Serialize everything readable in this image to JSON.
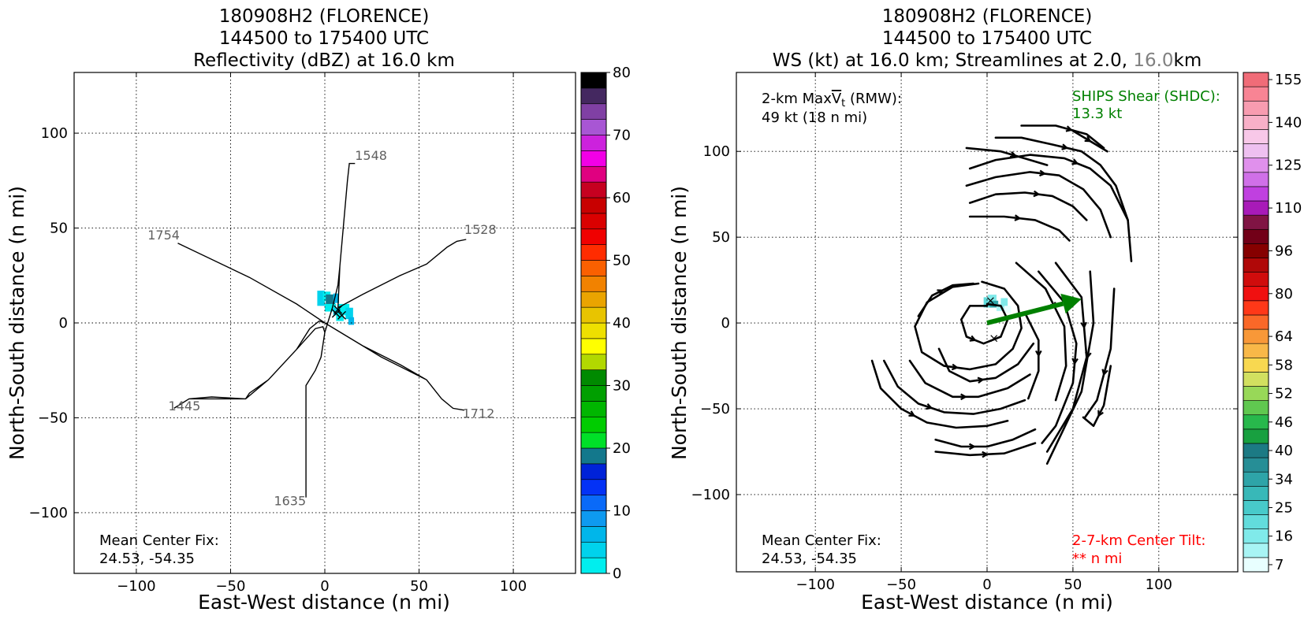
{
  "chart_data": [
    {
      "type": "heatmap",
      "title": [
        "180908H2 (FLORENCE)",
        "144500 to 175400 UTC",
        "Reflectivity (dBZ) at 16.0 km"
      ],
      "xlabel": "East-West distance (n mi)",
      "ylabel": "North-South distance (n mi)",
      "xlim": [
        -133,
        133
      ],
      "ylim": [
        -132,
        132
      ],
      "xticks": [
        -100,
        -50,
        0,
        50,
        100
      ],
      "yticks": [
        -100,
        -50,
        0,
        50,
        100
      ],
      "xtick_labels": [
        "−100",
        "−50",
        "0",
        "50",
        "100"
      ],
      "ytick_labels": [
        "−100",
        "−50",
        "0",
        "50",
        "100"
      ],
      "grid": true,
      "colorbar": {
        "min": 0,
        "max": 80,
        "step": 4,
        "ticks": [
          0,
          10,
          20,
          30,
          40,
          50,
          60,
          70,
          80
        ],
        "tick_labels": [
          "0",
          "10",
          "20",
          "30",
          "40",
          "50",
          "60",
          "70",
          "80"
        ],
        "colors": [
          "#00eeee",
          "#00d2ec",
          "#00b6ea",
          "#0e9af0",
          "#0a6af8",
          "#0432f6",
          "#0022d8",
          "#13788c",
          "#00e028",
          "#00cc00",
          "#00b600",
          "#009f00",
          "#008a00",
          "#b2d800",
          "#ffff00",
          "#eee000",
          "#e8c400",
          "#eaa400",
          "#f18200",
          "#fa6000",
          "#ff2c00",
          "#f00000",
          "#da0000",
          "#c80000",
          "#c60020",
          "#e00080",
          "#f200e6",
          "#cc22dd",
          "#a856d4",
          "#8040a4",
          "#442860",
          "#000000"
        ]
      },
      "reflectivity_cells": [
        {
          "x": -2,
          "y": 13,
          "w": 4,
          "h": 8,
          "color": "#00d2ec"
        },
        {
          "x": 1,
          "y": 14,
          "w": 4,
          "h": 5,
          "color": "#00eeee"
        },
        {
          "x": 3,
          "y": 12,
          "w": 5,
          "h": 6,
          "color": "#13788c"
        },
        {
          "x": 6,
          "y": 13,
          "w": 3,
          "h": 5,
          "color": "#00b6ea"
        },
        {
          "x": 3,
          "y": 8,
          "w": 6,
          "h": 4,
          "color": "#00eeee"
        },
        {
          "x": 7,
          "y": 6,
          "w": 5,
          "h": 4,
          "color": "#00d2ec"
        },
        {
          "x": 10,
          "y": 7,
          "w": 6,
          "h": 6,
          "color": "#00eeee"
        },
        {
          "x": 13,
          "y": 5,
          "w": 4,
          "h": 6,
          "color": "#00d2ec"
        },
        {
          "x": 14,
          "y": 1,
          "w": 3,
          "h": 4,
          "color": "#00b6ea"
        },
        {
          "x": 8,
          "y": 3,
          "w": 4,
          "h": 4,
          "color": "#00eeee"
        }
      ],
      "flight_track": [
        [
          -78,
          42
        ],
        [
          -40,
          24
        ],
        [
          -15,
          10
        ],
        [
          0,
          0
        ],
        [
          20,
          -12
        ],
        [
          40,
          -22
        ],
        [
          54,
          -30
        ],
        [
          62,
          -40
        ],
        [
          68,
          -45
        ],
        [
          74,
          -46
        ],
        [
          74,
          -46
        ],
        [
          68,
          -45
        ],
        [
          62,
          -40
        ],
        [
          54,
          -30
        ],
        [
          30,
          -18
        ],
        [
          0,
          0
        ],
        [
          -3,
          1
        ],
        [
          -8,
          -3
        ],
        [
          -15,
          -14
        ],
        [
          -30,
          -30
        ],
        [
          -40,
          -37
        ],
        [
          -42,
          -40
        ],
        [
          -60,
          -39
        ],
        [
          -72,
          -40
        ],
        [
          -80,
          -45
        ],
        [
          -80,
          -45
        ],
        [
          -72,
          -40
        ],
        [
          -42,
          -40
        ],
        [
          -30,
          -30
        ],
        [
          -15,
          -14
        ],
        [
          -5,
          -3
        ],
        [
          -1,
          -2
        ],
        [
          0,
          -5
        ],
        [
          -2,
          -18
        ],
        [
          -5,
          -25
        ],
        [
          -10,
          -33
        ],
        [
          -10,
          -92
        ],
        [
          -10,
          -92
        ],
        [
          -10,
          -33
        ],
        [
          -5,
          -25
        ],
        [
          -2,
          -18
        ],
        [
          0,
          -5
        ],
        [
          4,
          8
        ],
        [
          7,
          20
        ],
        [
          8,
          30
        ],
        [
          12,
          75
        ],
        [
          13,
          84
        ],
        [
          16,
          84
        ],
        [
          16,
          84
        ],
        [
          13,
          84
        ],
        [
          12,
          75
        ],
        [
          8,
          30
        ],
        [
          7,
          8
        ],
        [
          20,
          15
        ],
        [
          40,
          25
        ],
        [
          54,
          31
        ],
        [
          65,
          40
        ],
        [
          70,
          43
        ],
        [
          75,
          44
        ]
      ],
      "track_labels": [
        {
          "text": "1548",
          "x": 16,
          "y": 86
        },
        {
          "text": "1528",
          "x": 74,
          "y": 47
        },
        {
          "text": "1754",
          "x": -94,
          "y": 44
        },
        {
          "text": "1445",
          "x": -83,
          "y": -46
        },
        {
          "text": "1712",
          "x": 73,
          "y": -50
        },
        {
          "text": "1635",
          "x": -27,
          "y": -96
        }
      ],
      "center_marks": [
        [
          7,
          7
        ],
        [
          9,
          4
        ],
        [
          6,
          5
        ]
      ],
      "annotation": [
        "Mean Center Fix:",
        "24.53, -54.35"
      ]
    },
    {
      "type": "heatmap",
      "title": [
        "180908H2 (FLORENCE)",
        "144500 to 175400 UTC"
      ],
      "title_line3": {
        "prefix": "WS (kt) at 16.0 km; Streamlines at 2.0, ",
        "highlight": "16.0",
        "suffix": "km",
        "highlight_color": "#808080"
      },
      "xlabel": "East-West distance (n mi)",
      "ylabel": "North-South distance (n mi)",
      "xlim": [
        -146,
        146
      ],
      "ylim": [
        -145,
        146
      ],
      "xticks": [
        -100,
        -50,
        0,
        50,
        100
      ],
      "yticks": [
        -100,
        -50,
        0,
        50,
        100
      ],
      "xtick_labels": [
        "−100",
        "−50",
        "0",
        "50",
        "100"
      ],
      "ytick_labels": [
        "−100",
        "−50",
        "0",
        "50",
        "100"
      ],
      "grid": true,
      "colorbar": {
        "levels": 35,
        "ticks": [
          7,
          16,
          25,
          34,
          40,
          46,
          52,
          58,
          64,
          80,
          96,
          110,
          125,
          140,
          155
        ],
        "tick_level_index": [
          0,
          2,
          4,
          6,
          8,
          10,
          12,
          14,
          16,
          19,
          22,
          25,
          28,
          31,
          34
        ],
        "colors": [
          "#e8ffff",
          "#a8f4f4",
          "#80eaea",
          "#62dcdc",
          "#48caca",
          "#38b8b8",
          "#2ea4a8",
          "#268e96",
          "#1c7a84",
          "#18a040",
          "#28b84c",
          "#60c850",
          "#98d858",
          "#d2e060",
          "#f8d850",
          "#f8b848",
          "#f89838",
          "#fa6828",
          "#ff3818",
          "#f01010",
          "#d00c0c",
          "#b00808",
          "#860000",
          "#720018",
          "#801444",
          "#a81ab8",
          "#c040e0",
          "#d070e8",
          "#e090ec",
          "#eec0f0",
          "#f8c8e8",
          "#f8b0c8",
          "#f89cb0",
          "#f88494",
          "#f06c78",
          "#e05660",
          "#cc3850",
          "#b82840",
          "#a01c38"
        ]
      },
      "windspeed_cells": [
        {
          "x": 0,
          "y": 12,
          "w": 4,
          "h": 6,
          "color": "#62dcdc"
        },
        {
          "x": 3,
          "y": 14,
          "w": 5,
          "h": 5,
          "color": "#80eaea"
        },
        {
          "x": 4,
          "y": 11,
          "w": 5,
          "h": 4,
          "color": "#2ea4a8"
        },
        {
          "x": 8,
          "y": 9,
          "w": 5,
          "h": 4,
          "color": "#a8f4f4"
        },
        {
          "x": 10,
          "y": 12,
          "w": 4,
          "h": 5,
          "color": "#80eaea"
        },
        {
          "x": 12,
          "y": 8,
          "w": 4,
          "h": 4,
          "color": "#e8ffff"
        }
      ],
      "shear_vector": {
        "from": [
          0,
          0
        ],
        "to": [
          55,
          14
        ],
        "color": "#008000"
      },
      "center_marks": [
        [
          2,
          13
        ],
        [
          4,
          -9
        ]
      ],
      "streamlines": [
        [
          [
            -5,
            23
          ],
          [
            -20,
            21
          ],
          [
            -35,
            12
          ],
          [
            -42,
            -2
          ],
          [
            -38,
            -17
          ],
          [
            -25,
            -25
          ],
          [
            -10,
            -27
          ],
          [
            5,
            -24
          ],
          [
            15,
            -15
          ],
          [
            20,
            -3
          ],
          [
            18,
            10
          ],
          [
            10,
            20
          ],
          [
            -3,
            24
          ]
        ],
        [
          [
            0,
            10
          ],
          [
            -10,
            10
          ],
          [
            -15,
            2
          ],
          [
            -12,
            -8
          ],
          [
            -2,
            -12
          ],
          [
            8,
            -8
          ],
          [
            12,
            2
          ],
          [
            8,
            10
          ],
          [
            0,
            11
          ]
        ],
        [
          [
            -40,
            4
          ],
          [
            -32,
            16
          ],
          [
            -20,
            22
          ],
          [
            -8,
            23
          ]
        ],
        [
          [
            -67,
            -22
          ],
          [
            -62,
            -38
          ],
          [
            -50,
            -50
          ],
          [
            -35,
            -58
          ],
          [
            -18,
            -61
          ],
          [
            0,
            -60
          ],
          [
            12,
            -57
          ]
        ],
        [
          [
            -60,
            -22
          ],
          [
            -52,
            -37
          ],
          [
            -40,
            -47
          ],
          [
            -25,
            -52
          ],
          [
            -8,
            -53
          ],
          [
            8,
            -50
          ],
          [
            22,
            -45
          ]
        ],
        [
          [
            -45,
            -22
          ],
          [
            -36,
            -35
          ],
          [
            -20,
            -43
          ],
          [
            -5,
            -43
          ],
          [
            12,
            -38
          ],
          [
            25,
            -30
          ]
        ],
        [
          [
            -28,
            -15
          ],
          [
            -22,
            -28
          ],
          [
            -10,
            -34
          ],
          [
            5,
            -32
          ],
          [
            18,
            -24
          ],
          [
            27,
            -12
          ]
        ],
        [
          [
            -30,
            -68
          ],
          [
            -15,
            -72
          ],
          [
            0,
            -72
          ],
          [
            15,
            -68
          ],
          [
            28,
            -62
          ]
        ],
        [
          [
            -30,
            -75
          ],
          [
            -10,
            -77
          ],
          [
            10,
            -76
          ],
          [
            28,
            -70
          ]
        ],
        [
          [
            22,
            6
          ],
          [
            30,
            -10
          ],
          [
            30,
            -28
          ],
          [
            24,
            -44
          ]
        ],
        [
          [
            17,
            35
          ],
          [
            34,
            20
          ],
          [
            45,
            -2
          ],
          [
            46,
            -25
          ],
          [
            40,
            -45
          ]
        ],
        [
          [
            30,
            30
          ],
          [
            45,
            12
          ],
          [
            52,
            -12
          ],
          [
            50,
            -35
          ],
          [
            40,
            -60
          ],
          [
            32,
            -70
          ]
        ],
        [
          [
            40,
            35
          ],
          [
            55,
            15
          ],
          [
            58,
            -20
          ],
          [
            50,
            -50
          ],
          [
            35,
            -75
          ]
        ],
        [
          [
            60,
            30
          ],
          [
            62,
            0
          ],
          [
            55,
            -40
          ],
          [
            35,
            -82
          ]
        ],
        [
          [
            74,
            20
          ],
          [
            72,
            -15
          ],
          [
            64,
            -45
          ],
          [
            57,
            -55
          ]
        ],
        [
          [
            72,
            -25
          ],
          [
            68,
            -48
          ],
          [
            62,
            -60
          ],
          [
            56,
            -55
          ]
        ],
        [
          [
            -10,
            90
          ],
          [
            5,
            95
          ],
          [
            25,
            98
          ],
          [
            45,
            96
          ],
          [
            60,
            90
          ],
          [
            72,
            80
          ],
          [
            82,
            60
          ],
          [
            84,
            36
          ]
        ],
        [
          [
            5,
            108
          ],
          [
            20,
            108
          ],
          [
            38,
            104
          ],
          [
            55,
            100
          ],
          [
            66,
            92
          ],
          [
            75,
            80
          ],
          [
            82,
            60
          ]
        ],
        [
          [
            -12,
            80
          ],
          [
            5,
            85
          ],
          [
            25,
            88
          ],
          [
            42,
            86
          ],
          [
            56,
            78
          ],
          [
            66,
            66
          ],
          [
            72,
            50
          ]
        ],
        [
          [
            -10,
            70
          ],
          [
            5,
            75
          ],
          [
            22,
            76
          ],
          [
            38,
            74
          ],
          [
            50,
            68
          ],
          [
            58,
            60
          ]
        ],
        [
          [
            -10,
            62
          ],
          [
            10,
            62
          ],
          [
            28,
            60
          ],
          [
            42,
            54
          ],
          [
            48,
            48
          ]
        ],
        [
          [
            -12,
            102
          ],
          [
            8,
            100
          ],
          [
            25,
            95
          ],
          [
            35,
            92
          ]
        ],
        [
          [
            20,
            115
          ],
          [
            40,
            115
          ],
          [
            58,
            110
          ],
          [
            68,
            102
          ]
        ],
        [
          [
            50,
            112
          ],
          [
            70,
            100
          ]
        ]
      ],
      "annotations": {
        "rmw": {
          "prefix": "2-km Max",
          "v": "V",
          "sub": "t",
          "suffix": " (RMW):",
          "line2": "49 kt (18 n mi)"
        },
        "shear": {
          "line1": "SHIPS Shear (SHDC):",
          "line2": "13.3 kt",
          "color": "#008000"
        },
        "center_fix": {
          "line1": "Mean Center Fix:",
          "line2": "24.53, -54.35"
        },
        "tilt": {
          "line1": "2-7-km Center Tilt:",
          "line2": "** n mi",
          "color": "#ff0000"
        }
      }
    }
  ]
}
